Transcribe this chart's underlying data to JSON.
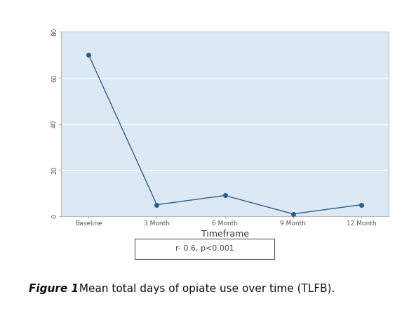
{
  "x_labels": [
    "Baseline",
    "3 Month",
    "6 Month",
    "9 Month",
    "12 Month"
  ],
  "x_values": [
    0,
    1,
    2,
    3,
    4
  ],
  "y_values": [
    70,
    5,
    9,
    1,
    5
  ],
  "line_color": "#2d5f8a",
  "marker_color": "#2d5f8a",
  "marker_style": "o",
  "marker_size": 4,
  "xlabel": "Timeframe",
  "ylabel": "",
  "ylim": [
    0,
    80
  ],
  "yticks": [
    0,
    20,
    40,
    60,
    80
  ],
  "plot_bg_color": "#dce9f5",
  "outer_bg_color": "#ffffff",
  "grid_color": "#ffffff",
  "border_color": "#c9a0b0",
  "annotation_text": "r- 0.6, p<0.001",
  "caption_bold": "Figure 1",
  "caption_normal": " Mean total days of opiate use over time (TLFB).",
  "tick_fontsize": 6.5,
  "xlabel_fontsize": 9,
  "annotation_fontsize": 8,
  "caption_fontsize": 11
}
